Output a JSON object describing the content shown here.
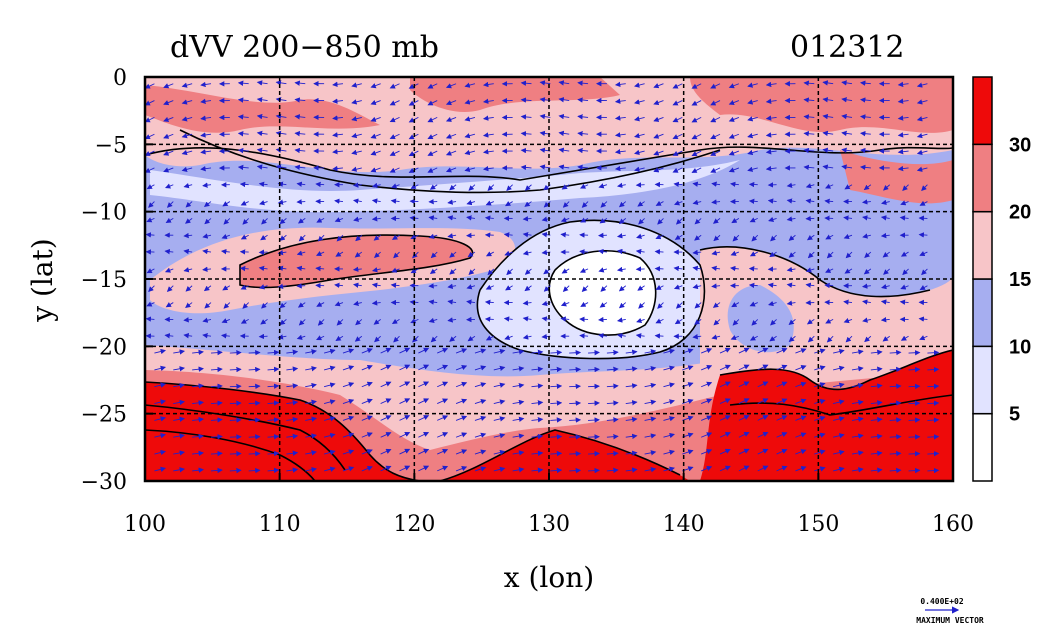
{
  "chart_data": {
    "type": "heatmap",
    "title": "dVV 200−850 mb",
    "date_label": "012312",
    "xlabel": "x (lon)",
    "ylabel": "y (lat)",
    "xlim": [
      100,
      160
    ],
    "ylim": [
      -30,
      0
    ],
    "x_ticks": [
      100,
      110,
      120,
      130,
      140,
      150,
      160
    ],
    "y_ticks": [
      0,
      -5,
      -10,
      -15,
      -20,
      -25,
      -30
    ],
    "x_tick_labels": [
      "100",
      "110",
      "120",
      "130",
      "140",
      "150",
      "160"
    ],
    "y_tick_labels": [
      "0",
      "−5",
      "−10",
      "−15",
      "−20",
      "−25",
      "−30"
    ],
    "grid": true,
    "colorbar": {
      "levels": [
        5,
        10,
        15,
        20,
        30
      ],
      "labels": [
        "5",
        "10",
        "15",
        "20",
        "30"
      ],
      "colors": [
        "#ffffff",
        "#e1e3ff",
        "#a6aef0",
        "#f7c5c8",
        "#ef7f82",
        "#ee0a0a"
      ]
    },
    "regions": [
      {
        "name": "northern band",
        "lon": [
          100,
          160
        ],
        "lat": [
          -8,
          0
        ],
        "level": "10-20"
      },
      {
        "name": "central interior minimum",
        "lon": [
          128,
          140
        ],
        "lat": [
          -20,
          -12
        ],
        "level": "0-5"
      },
      {
        "name": "southwest jet maximum",
        "lon": [
          100,
          120
        ],
        "lat": [
          -30,
          -23
        ],
        "level": ">30"
      },
      {
        "name": "southeast jet maximum",
        "lon": [
          141,
          160
        ],
        "lat": [
          -30,
          -21
        ],
        "level": ">30"
      }
    ],
    "vector_legend": {
      "value": "0.400E+02",
      "label": "MAXIMUM VECTOR"
    }
  },
  "colors": {
    "background": "#ffffff",
    "vectors": "#2020cc",
    "grid": "#000000"
  }
}
